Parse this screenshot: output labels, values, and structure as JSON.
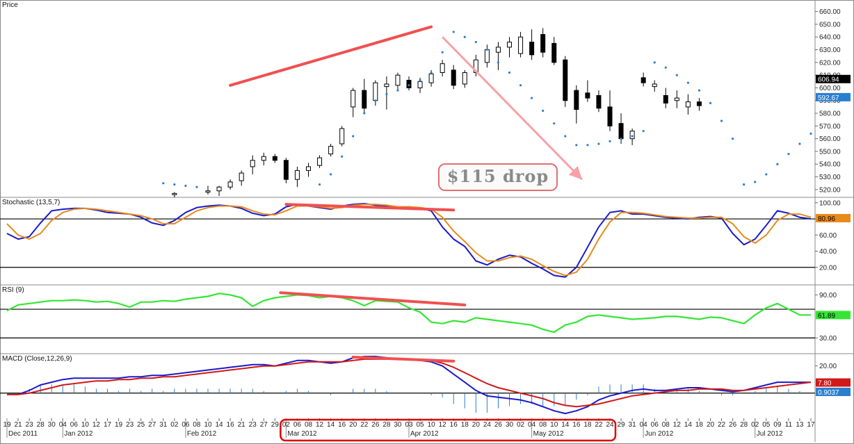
{
  "colors": {
    "stoch_k": "#1a1ac8",
    "stoch_d": "#e8891c",
    "rsi": "#33e633",
    "macd": "#1a1ac8",
    "macd_signal": "#d01818",
    "psar": "#2a7fcf",
    "trend": "#f05050",
    "arrow": "#f7a0a8",
    "highlight": "#e00000",
    "hist": "#2a7fcf"
  },
  "icons": {
    "callout": "rounded-callout-box",
    "arrow": "arrow-icon"
  },
  "chart_data": {
    "type": "candlestick",
    "panels": [
      {
        "name": "price",
        "title": "Price",
        "ylim": [
          515,
          668
        ],
        "ticks": [
          520,
          530,
          540,
          550,
          560,
          570,
          580,
          590,
          600,
          610,
          620,
          630,
          640,
          650,
          660
        ],
        "last_labels": [
          {
            "text": "606.94",
            "value": 606.94,
            "bg": "#000000",
            "fg": "#ffffff"
          },
          {
            "text": "592.67",
            "value": 592.67,
            "bg": "#2a7fcf",
            "fg": "#ffffff"
          }
        ],
        "callout": "$115 drop",
        "trendlines": [
          {
            "from": [
              "2012-02-16",
              602
            ],
            "to": [
              "2012-04-10",
              648
            ]
          }
        ],
        "arrow": {
          "from": [
            "2012-04-12",
            640
          ],
          "to": [
            "2012-05-17",
            528
          ]
        }
      },
      {
        "name": "stochastic",
        "title": "Stochastic (13,5,7)",
        "ylim": [
          0,
          105
        ],
        "ticks": [
          20,
          40,
          60,
          80,
          100
        ],
        "tick_labels": [
          "20.00",
          "40.00",
          "60.00",
          "80.00",
          "100.00"
        ],
        "levels": [
          20,
          80
        ],
        "last_labels": [
          {
            "text": "80.96",
            "value": 80.96,
            "bg": "#e8891c",
            "fg": "#000000"
          }
        ],
        "trendlines": [
          {
            "from": [
              "2012-03-02",
              98
            ],
            "to": [
              "2012-04-16",
              91
            ]
          }
        ]
      },
      {
        "name": "rsi",
        "title": "RSI (9)",
        "ylim": [
          10,
          102
        ],
        "ticks": [
          30,
          90
        ],
        "tick_labels": [
          "30.00",
          "90.00"
        ],
        "levels": [
          30,
          70
        ],
        "last_labels": [
          {
            "text": "61.89",
            "value": 61.89,
            "bg": "#33e633",
            "fg": "#000000"
          }
        ],
        "trendlines": [
          {
            "from": [
              "2012-03-01",
              93
            ],
            "to": [
              "2012-04-18",
              76
            ]
          }
        ]
      },
      {
        "name": "macd",
        "title": "MACD (Close,12,26,9)",
        "ylim": [
          -18,
          28
        ],
        "ticks": [
          20
        ],
        "tick_labels": [
          "20.00"
        ],
        "levels": [
          0
        ],
        "last_labels": [
          {
            "text": "7.80",
            "value": 7.8,
            "bg": "#d01818",
            "fg": "#ffffff"
          },
          {
            "text": "0.9037",
            "value": 0.9037,
            "bg": "#2a7fcf",
            "fg": "#ffffff"
          }
        ],
        "trendlines": [
          {
            "from": [
              "2012-03-20",
              26.5
            ],
            "to": [
              "2012-04-16",
              23.5
            ]
          }
        ]
      }
    ],
    "dates": [
      "2011-12-19",
      "2011-12-21",
      "2011-12-23",
      "2011-12-28",
      "2011-12-30",
      "2012-01-04",
      "2012-01-06",
      "2012-01-10",
      "2012-01-12",
      "2012-01-17",
      "2012-01-19",
      "2012-01-23",
      "2012-01-25",
      "2012-01-27",
      "2012-01-31",
      "2012-02-02",
      "2012-02-06",
      "2012-02-08",
      "2012-02-10",
      "2012-02-14",
      "2012-02-16",
      "2012-02-21",
      "2012-02-23",
      "2012-02-27",
      "2012-02-29",
      "2012-03-02",
      "2012-03-06",
      "2012-03-08",
      "2012-03-12",
      "2012-03-14",
      "2012-03-16",
      "2012-03-20",
      "2012-03-22",
      "2012-03-26",
      "2012-03-28",
      "2012-03-30",
      "2012-04-03",
      "2012-04-05",
      "2012-04-10",
      "2012-04-12",
      "2012-04-16",
      "2012-04-18",
      "2012-04-20",
      "2012-04-24",
      "2012-04-26",
      "2012-04-30",
      "2012-05-02",
      "2012-05-04",
      "2012-05-08",
      "2012-05-10",
      "2012-05-14",
      "2012-05-16",
      "2012-05-18",
      "2012-05-22",
      "2012-05-24",
      "2012-05-29",
      "2012-05-31",
      "2012-06-04",
      "2012-06-06",
      "2012-06-08",
      "2012-06-12",
      "2012-06-14",
      "2012-06-18",
      "2012-06-20",
      "2012-06-22",
      "2012-06-26",
      "2012-06-28",
      "2012-07-02",
      "2012-07-05",
      "2012-07-09",
      "2012-07-11",
      "2012-07-13",
      "2012-07-17"
    ],
    "x_tick_labels": [
      "19",
      "21",
      "23",
      "28",
      "30",
      "04",
      "06",
      "10",
      "12",
      "17",
      "19",
      "23",
      "25",
      "27",
      "31",
      "02",
      "06",
      "08",
      "10",
      "14",
      "16",
      "21",
      "23",
      "27",
      "29",
      "02",
      "06",
      "08",
      "12",
      "14",
      "16",
      "20",
      "22",
      "26",
      "28",
      "30",
      "03",
      "05",
      "10",
      "12",
      "16",
      "18",
      "20",
      "24",
      "26",
      "30",
      "02",
      "04",
      "08",
      "10",
      "14",
      "16",
      "18",
      "22",
      "24",
      "29",
      "31",
      "04",
      "06",
      "08",
      "12",
      "14",
      "18",
      "20",
      "22",
      "26",
      "28",
      "02",
      "05",
      "09",
      "11",
      "13",
      "17"
    ],
    "month_labels": [
      {
        "text": "Dec 2011",
        "date": "2011-12-19"
      },
      {
        "text": "Jan 2012",
        "date": "2012-01-04"
      },
      {
        "text": "Feb 2012",
        "date": "2012-02-06"
      },
      {
        "text": "Mar 2012",
        "date": "2012-03-02"
      },
      {
        "text": "Apr 2012",
        "date": "2012-04-03"
      },
      {
        "text": "May 2012",
        "date": "2012-05-04"
      },
      {
        "text": "Jun 2012",
        "date": "2012-06-04"
      },
      {
        "text": "Jul 2012",
        "date": "2012-07-02"
      }
    ],
    "highlight_range": [
      "2012-03-02",
      "2012-05-24"
    ],
    "ohlc": [
      {
        "date": "2012-02-02",
        "o": 516,
        "h": 518,
        "l": 514,
        "c": 517
      },
      {
        "date": "2012-02-10",
        "o": 518,
        "h": 523,
        "l": 516,
        "c": 519
      },
      {
        "date": "2012-02-14",
        "o": 519,
        "h": 523,
        "l": 515,
        "c": 522
      },
      {
        "date": "2012-02-16",
        "o": 522,
        "h": 528,
        "l": 520,
        "c": 526
      },
      {
        "date": "2012-02-21",
        "o": 527,
        "h": 535,
        "l": 523,
        "c": 533
      },
      {
        "date": "2012-02-23",
        "o": 538,
        "h": 547,
        "l": 532,
        "c": 543
      },
      {
        "date": "2012-02-27",
        "o": 543,
        "h": 549,
        "l": 539,
        "c": 546
      },
      {
        "date": "2012-02-29",
        "o": 546,
        "h": 548,
        "l": 541,
        "c": 543
      },
      {
        "date": "2012-03-02",
        "o": 543,
        "h": 545,
        "l": 525,
        "c": 528
      },
      {
        "date": "2012-03-06",
        "o": 528,
        "h": 538,
        "l": 522,
        "c": 535
      },
      {
        "date": "2012-03-08",
        "o": 535,
        "h": 541,
        "l": 530,
        "c": 538
      },
      {
        "date": "2012-03-12",
        "o": 539,
        "h": 547,
        "l": 537,
        "c": 545
      },
      {
        "date": "2012-03-14",
        "o": 548,
        "h": 556,
        "l": 546,
        "c": 554
      },
      {
        "date": "2012-03-16",
        "o": 556,
        "h": 570,
        "l": 554,
        "c": 568
      },
      {
        "date": "2012-03-20",
        "o": 585,
        "h": 600,
        "l": 577,
        "c": 598
      },
      {
        "date": "2012-03-22",
        "o": 598,
        "h": 607,
        "l": 580,
        "c": 584
      },
      {
        "date": "2012-03-26",
        "o": 590,
        "h": 606,
        "l": 586,
        "c": 604
      },
      {
        "date": "2012-03-28",
        "o": 601,
        "h": 609,
        "l": 583,
        "c": 603
      },
      {
        "date": "2012-03-30",
        "o": 602,
        "h": 612,
        "l": 598,
        "c": 610
      },
      {
        "date": "2012-04-03",
        "o": 606,
        "h": 609,
        "l": 598,
        "c": 600
      },
      {
        "date": "2012-04-05",
        "o": 600,
        "h": 608,
        "l": 596,
        "c": 605
      },
      {
        "date": "2012-04-10",
        "o": 604,
        "h": 614,
        "l": 601,
        "c": 611
      },
      {
        "date": "2012-04-12",
        "o": 612,
        "h": 622,
        "l": 609,
        "c": 619
      },
      {
        "date": "2012-04-16",
        "o": 614,
        "h": 618,
        "l": 599,
        "c": 602
      },
      {
        "date": "2012-04-18",
        "o": 603,
        "h": 614,
        "l": 600,
        "c": 612
      },
      {
        "date": "2012-04-20",
        "o": 612,
        "h": 626,
        "l": 609,
        "c": 622
      },
      {
        "date": "2012-04-24",
        "o": 620,
        "h": 634,
        "l": 616,
        "c": 630
      },
      {
        "date": "2012-04-26",
        "o": 628,
        "h": 636,
        "l": 614,
        "c": 632
      },
      {
        "date": "2012-04-30",
        "o": 632,
        "h": 640,
        "l": 624,
        "c": 636
      },
      {
        "date": "2012-05-02",
        "o": 627,
        "h": 644,
        "l": 624,
        "c": 640
      },
      {
        "date": "2012-05-04",
        "o": 636,
        "h": 646,
        "l": 622,
        "c": 626
      },
      {
        "date": "2012-05-08",
        "o": 642,
        "h": 647,
        "l": 624,
        "c": 628
      },
      {
        "date": "2012-05-10",
        "o": 635,
        "h": 640,
        "l": 618,
        "c": 620
      },
      {
        "date": "2012-05-14",
        "o": 622,
        "h": 625,
        "l": 585,
        "c": 590
      },
      {
        "date": "2012-05-16",
        "o": 598,
        "h": 602,
        "l": 572,
        "c": 583
      },
      {
        "date": "2012-05-18",
        "o": 596,
        "h": 606,
        "l": 589,
        "c": 592
      },
      {
        "date": "2012-05-22",
        "o": 594,
        "h": 598,
        "l": 581,
        "c": 584
      },
      {
        "date": "2012-05-24",
        "o": 585,
        "h": 598,
        "l": 566,
        "c": 570
      }
    ],
    "ohlc_continued": [
      {
        "date": "2012-05-29",
        "o": 572,
        "h": 580,
        "l": 556,
        "c": 560
      },
      {
        "date": "2012-05-31",
        "o": 560,
        "h": 568,
        "l": 555,
        "c": 566
      },
      {
        "date": "2012-06-04",
        "o": 608,
        "h": 612,
        "l": 601,
        "c": 604
      },
      {
        "date": "2012-06-06",
        "o": 601,
        "h": 606,
        "l": 597,
        "c": 603
      },
      {
        "date": "2012-06-08",
        "o": 594,
        "h": 600,
        "l": 584,
        "c": 588
      },
      {
        "date": "2012-06-12",
        "o": 590,
        "h": 598,
        "l": 584,
        "c": 592
      },
      {
        "date": "2012-06-14",
        "o": 585,
        "h": 595,
        "l": 579,
        "c": 589
      },
      {
        "date": "2012-06-18",
        "o": 589,
        "h": 592,
        "l": 582,
        "c": 586
      }
    ],
    "psar": [
      [
        "2012-01-31",
        525
      ],
      [
        "2012-02-02",
        524
      ],
      [
        "2012-02-06",
        523
      ],
      [
        "2012-02-08",
        522
      ],
      [
        "2012-03-12",
        524
      ],
      [
        "2012-03-14",
        532
      ],
      [
        "2012-03-16",
        546
      ],
      [
        "2012-03-20",
        562
      ],
      [
        "2012-03-22",
        580
      ],
      [
        "2012-03-26",
        590
      ],
      [
        "2012-03-28",
        595
      ],
      [
        "2012-03-30",
        598
      ],
      [
        "2012-04-03",
        602
      ],
      [
        "2012-04-05",
        606
      ],
      [
        "2012-04-10",
        612
      ],
      [
        "2012-04-12",
        628
      ],
      [
        "2012-04-16",
        644
      ],
      [
        "2012-04-18",
        640
      ],
      [
        "2012-04-20",
        636
      ],
      [
        "2012-04-24",
        630
      ],
      [
        "2012-04-26",
        620
      ],
      [
        "2012-04-30",
        612
      ],
      [
        "2012-05-02",
        602
      ],
      [
        "2012-05-04",
        592
      ],
      [
        "2012-05-08",
        582
      ],
      [
        "2012-05-10",
        572
      ],
      [
        "2012-05-14",
        562
      ],
      [
        "2012-05-16",
        555
      ],
      [
        "2012-05-18",
        555
      ],
      [
        "2012-05-22",
        556
      ],
      [
        "2012-05-24",
        558
      ],
      [
        "2012-05-29",
        560
      ],
      [
        "2012-05-31",
        562
      ],
      [
        "2012-06-04",
        566
      ],
      [
        "2012-06-06",
        620
      ],
      [
        "2012-06-08",
        616
      ],
      [
        "2012-06-12",
        610
      ],
      [
        "2012-06-14",
        604
      ],
      [
        "2012-06-18",
        598
      ],
      [
        "2012-06-20",
        588
      ],
      [
        "2012-06-22",
        574
      ],
      [
        "2012-06-26",
        560
      ],
      [
        "2012-06-28",
        524
      ],
      [
        "2012-07-02",
        526
      ],
      [
        "2012-07-05",
        532
      ],
      [
        "2012-07-09",
        540
      ],
      [
        "2012-07-11",
        548
      ],
      [
        "2012-07-13",
        556
      ],
      [
        "2012-07-17",
        564
      ]
    ],
    "stochastic_k": [
      62,
      55,
      58,
      75,
      90,
      92,
      93,
      93,
      91,
      88,
      87,
      86,
      82,
      75,
      72,
      78,
      88,
      94,
      96,
      97,
      96,
      93,
      87,
      84,
      86,
      95,
      98,
      96,
      94,
      92,
      96,
      98,
      99,
      97,
      96,
      94,
      95,
      93,
      90,
      70,
      55,
      46,
      28,
      23,
      30,
      35,
      33,
      25,
      18,
      10,
      8,
      20,
      45,
      70,
      88,
      90,
      86,
      86,
      84,
      82,
      81,
      80,
      82,
      83,
      81,
      62,
      48,
      55,
      72,
      90,
      87,
      82,
      80
    ],
    "stochastic_d": [
      74,
      60,
      55,
      62,
      78,
      88,
      92,
      93,
      92,
      90,
      88,
      86,
      84,
      80,
      74,
      74,
      82,
      90,
      94,
      96,
      96,
      95,
      90,
      86,
      85,
      90,
      96,
      96,
      95,
      93,
      94,
      97,
      98,
      98,
      97,
      95,
      95,
      94,
      92,
      82,
      65,
      52,
      38,
      28,
      28,
      32,
      34,
      30,
      22,
      15,
      10,
      14,
      30,
      55,
      76,
      88,
      88,
      87,
      85,
      83,
      82,
      81,
      81,
      82,
      82,
      74,
      58,
      50,
      60,
      78,
      86,
      86,
      82
    ],
    "rsi": [
      68,
      76,
      78,
      80,
      82,
      82,
      83,
      82,
      80,
      81,
      78,
      73,
      80,
      80,
      82,
      81,
      84,
      86,
      88,
      92,
      90,
      86,
      74,
      82,
      86,
      88,
      90,
      89,
      86,
      88,
      86,
      82,
      75,
      82,
      81,
      80,
      72,
      66,
      52,
      50,
      54,
      52,
      58,
      56,
      54,
      52,
      50,
      48,
      42,
      38,
      48,
      52,
      60,
      62,
      60,
      58,
      56,
      57,
      58,
      60,
      60,
      58,
      56,
      59,
      58,
      54,
      50,
      62,
      72,
      78,
      70,
      62,
      62
    ],
    "macd": [
      -1,
      -1,
      2,
      6,
      8,
      10,
      11,
      11,
      11,
      11,
      11,
      12,
      12,
      13,
      13,
      14,
      15,
      16,
      17,
      18,
      19,
      20,
      21,
      21,
      20,
      22,
      24,
      24,
      23,
      22,
      23,
      26,
      27,
      27,
      26,
      25,
      25,
      24,
      23,
      20,
      14,
      8,
      2,
      -2,
      -3,
      -4,
      -5,
      -7,
      -10,
      -13,
      -15,
      -13,
      -10,
      -5,
      -2,
      0,
      2,
      3,
      2,
      2,
      3,
      4,
      4,
      3,
      2,
      1,
      2,
      4,
      6,
      8,
      8,
      8,
      8
    ],
    "macd_signal": [
      -1,
      -1,
      0,
      2,
      4,
      6,
      7,
      8,
      9,
      9,
      10,
      10,
      11,
      11,
      12,
      12,
      13,
      14,
      15,
      16,
      17,
      18,
      19,
      20,
      20,
      21,
      22,
      23,
      23,
      23,
      23,
      24,
      25,
      25,
      25,
      25,
      25,
      24,
      24,
      22,
      19,
      15,
      11,
      7,
      4,
      2,
      0,
      -2,
      -4,
      -7,
      -9,
      -10,
      -9,
      -8,
      -6,
      -4,
      -2,
      -1,
      0,
      1,
      2,
      2,
      3,
      3,
      3,
      2,
      2,
      3,
      4,
      5,
      6,
      7,
      8
    ]
  }
}
